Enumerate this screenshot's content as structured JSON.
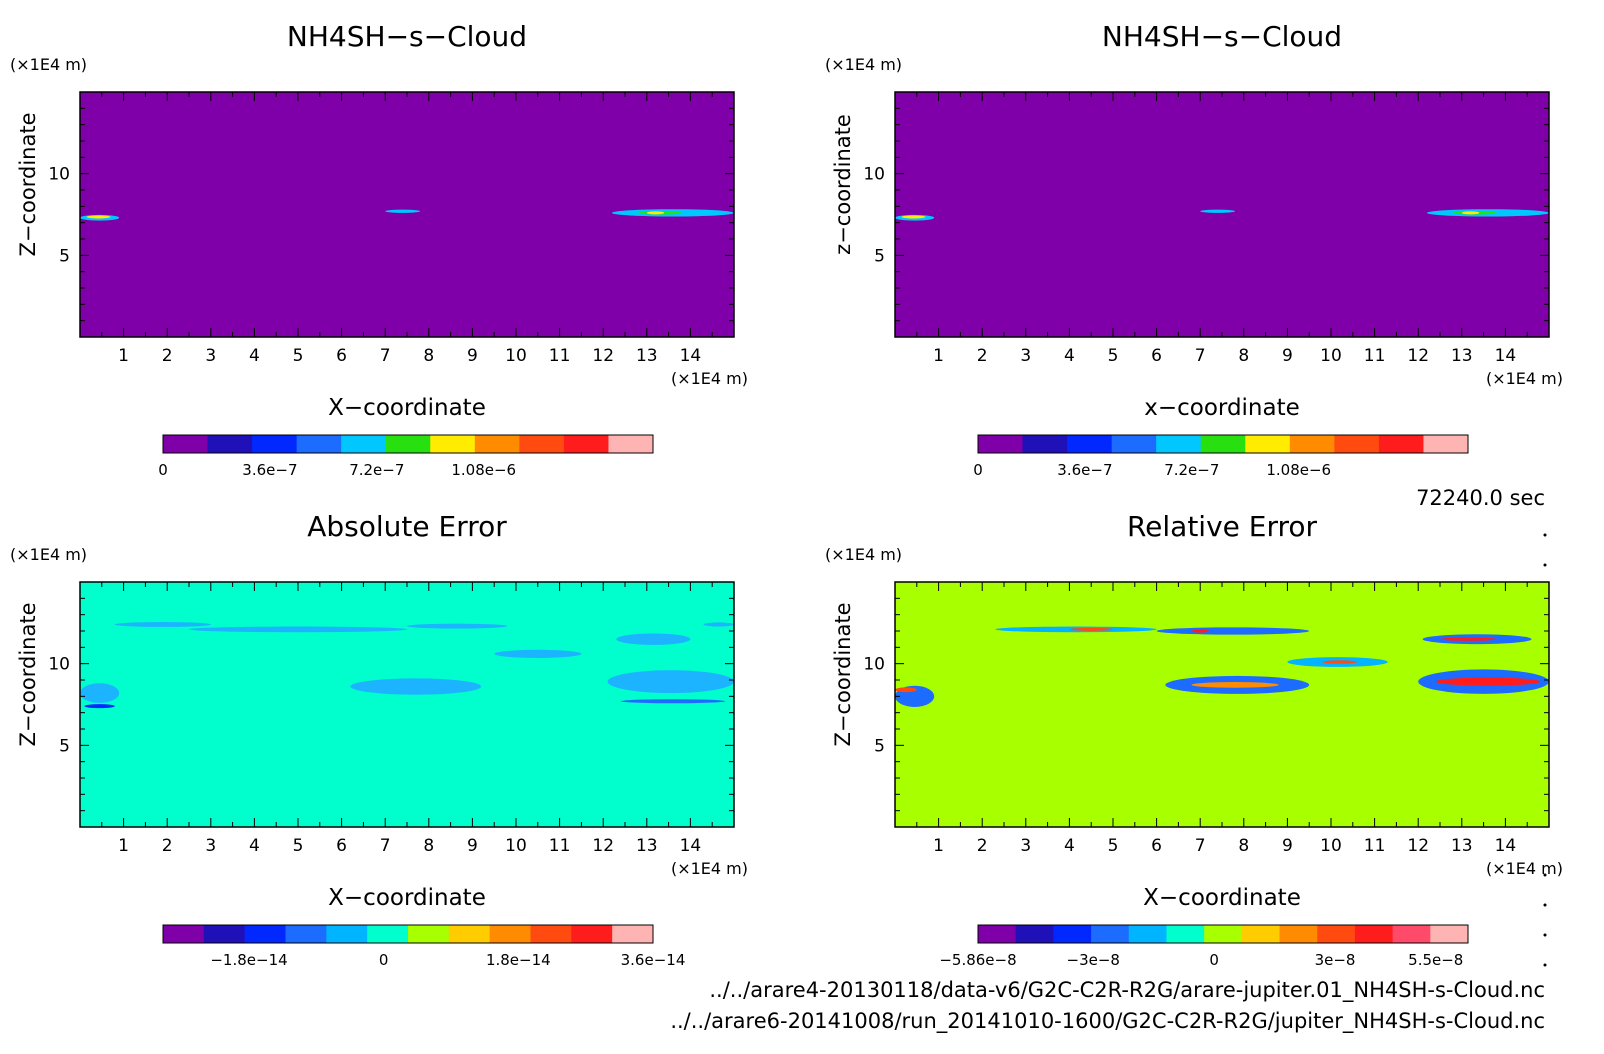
{
  "time_label": "72240.0 sec",
  "files": [
    "../../arare4-20130118/data-v6/G2C-C2R-R2G/arare-jupiter.01_NH4SH-s-Cloud.nc",
    "../../arare6-20141008/run_20141010-1600/G2C-C2R-R2G/jupiter_NH4SH-s-Cloud.nc"
  ],
  "colors": {
    "background_purple": "#7f00a8",
    "background_cyan": "#00ffcc",
    "background_lime": "#a8ff00",
    "axis": "#000000"
  },
  "chart_data": [
    {
      "id": "top-left",
      "type": "heatmap",
      "title": "NH4SH−s−Cloud",
      "xlabel": "X−coordinate",
      "ylabel": "Z−coordinate",
      "x_unit": "(×1E4 m)",
      "z_unit": "(×1E4 m)",
      "xlim": [
        0,
        15
      ],
      "zlim": [
        0,
        15
      ],
      "x_ticks": [
        "1",
        "2",
        "3",
        "4",
        "5",
        "6",
        "7",
        "8",
        "9",
        "10",
        "11",
        "12",
        "13",
        "14"
      ],
      "z_ticks": [
        "5",
        "10"
      ],
      "background": "#7f00a8",
      "colorbar": {
        "colors": [
          "#7f00a8",
          "#1f10b8",
          "#0028ff",
          "#1c6cff",
          "#00c8ff",
          "#28e010",
          "#ffec00",
          "#ff8c00",
          "#ff4a10",
          "#ff1c1c",
          "#ffb4b4"
        ],
        "labels": [
          {
            "text": "0",
            "value": 0
          },
          {
            "text": "3.6e−7",
            "value": 3.6e-07
          },
          {
            "text": "7.2e−7",
            "value": 7.2e-07
          },
          {
            "text": "1.08e−6",
            "value": 1.08e-06
          }
        ],
        "range": [
          0,
          1.65e-06
        ]
      },
      "features": [
        {
          "x": [
            0.0,
            0.9
          ],
          "z": 7.3,
          "thick": 0.35,
          "fill": "#00c8ff"
        },
        {
          "x": [
            0.15,
            0.7
          ],
          "z": 7.35,
          "thick": 0.15,
          "fill": "#ffec00"
        },
        {
          "x": [
            7.0,
            7.8
          ],
          "z": 7.7,
          "thick": 0.2,
          "fill": "#00c8ff"
        },
        {
          "x": [
            12.2,
            15.0
          ],
          "z": 7.6,
          "thick": 0.45,
          "fill": "#00c8ff"
        },
        {
          "x": [
            12.8,
            13.8
          ],
          "z": 7.6,
          "thick": 0.2,
          "fill": "#28e010"
        },
        {
          "x": [
            13.0,
            13.4
          ],
          "z": 7.6,
          "thick": 0.12,
          "fill": "#ffec00"
        }
      ]
    },
    {
      "id": "top-right",
      "type": "heatmap",
      "title": "NH4SH−s−Cloud",
      "xlabel": "x−coordinate",
      "ylabel": "z−coordinate",
      "x_unit": "(×1E4 m)",
      "z_unit": "(×1E4 m)",
      "xlim": [
        0,
        15
      ],
      "zlim": [
        0,
        15
      ],
      "x_ticks": [
        "1",
        "2",
        "3",
        "4",
        "5",
        "6",
        "7",
        "8",
        "9",
        "10",
        "11",
        "12",
        "13",
        "14"
      ],
      "z_ticks": [
        "5",
        "10"
      ],
      "background": "#7f00a8",
      "colorbar": {
        "colors": [
          "#7f00a8",
          "#1f10b8",
          "#0028ff",
          "#1c6cff",
          "#00c8ff",
          "#28e010",
          "#ffec00",
          "#ff8c00",
          "#ff4a10",
          "#ff1c1c",
          "#ffb4b4"
        ],
        "labels": [
          {
            "text": "0",
            "value": 0
          },
          {
            "text": "3.6e−7",
            "value": 3.6e-07
          },
          {
            "text": "7.2e−7",
            "value": 7.2e-07
          },
          {
            "text": "1.08e−6",
            "value": 1.08e-06
          }
        ],
        "range": [
          0,
          1.65e-06
        ]
      },
      "features": [
        {
          "x": [
            0.0,
            0.9
          ],
          "z": 7.3,
          "thick": 0.35,
          "fill": "#00c8ff"
        },
        {
          "x": [
            0.15,
            0.7
          ],
          "z": 7.35,
          "thick": 0.15,
          "fill": "#ffec00"
        },
        {
          "x": [
            7.0,
            7.8
          ],
          "z": 7.7,
          "thick": 0.2,
          "fill": "#00c8ff"
        },
        {
          "x": [
            12.2,
            15.0
          ],
          "z": 7.6,
          "thick": 0.45,
          "fill": "#00c8ff"
        },
        {
          "x": [
            12.8,
            13.8
          ],
          "z": 7.6,
          "thick": 0.2,
          "fill": "#28e010"
        },
        {
          "x": [
            13.0,
            13.4
          ],
          "z": 7.6,
          "thick": 0.12,
          "fill": "#ffec00"
        }
      ]
    },
    {
      "id": "bottom-left",
      "type": "heatmap",
      "title": "Absolute Error",
      "xlabel": "X−coordinate",
      "ylabel": "Z−coordinate",
      "x_unit": "(×1E4 m)",
      "z_unit": "(×1E4 m)",
      "xlim": [
        0,
        15
      ],
      "zlim": [
        0,
        15
      ],
      "x_ticks": [
        "1",
        "2",
        "3",
        "4",
        "5",
        "6",
        "7",
        "8",
        "9",
        "10",
        "11",
        "12",
        "13",
        "14"
      ],
      "z_ticks": [
        "5",
        "10"
      ],
      "background": "#00ffcc",
      "colorbar": {
        "colors": [
          "#7f00a8",
          "#1f10b8",
          "#0028ff",
          "#1c6cff",
          "#00b4ff",
          "#00ffcc",
          "#a8ff00",
          "#ffcc00",
          "#ff8c00",
          "#ff4a10",
          "#ff1c1c",
          "#ffb4b4"
        ],
        "labels": [
          {
            "text": "−1.8e−14",
            "value": -1.8e-14
          },
          {
            "text": "0",
            "value": 0
          },
          {
            "text": "1.8e−14",
            "value": 1.8e-14
          },
          {
            "text": "3.6e−14",
            "value": 3.6e-14
          }
        ],
        "range": [
          -2.95e-14,
          3.6e-14
        ]
      },
      "features": [
        {
          "x": [
            0.8,
            3.0
          ],
          "z": 12.4,
          "thick": 0.3,
          "fill": "#1cb4ff"
        },
        {
          "x": [
            2.5,
            7.5
          ],
          "z": 12.1,
          "thick": 0.35,
          "fill": "#1cb4ff"
        },
        {
          "x": [
            7.5,
            9.8
          ],
          "z": 12.3,
          "thick": 0.3,
          "fill": "#1cb4ff"
        },
        {
          "x": [
            12.3,
            14.0
          ],
          "z": 11.5,
          "thick": 0.7,
          "fill": "#1cb4ff"
        },
        {
          "x": [
            14.3,
            15.0
          ],
          "z": 12.4,
          "thick": 0.25,
          "fill": "#1cb4ff"
        },
        {
          "x": [
            9.5,
            11.5
          ],
          "z": 10.6,
          "thick": 0.5,
          "fill": "#1cb4ff"
        },
        {
          "x": [
            6.2,
            9.2
          ],
          "z": 8.6,
          "thick": 1.0,
          "fill": "#1cb4ff"
        },
        {
          "x": [
            12.1,
            15.0
          ],
          "z": 8.9,
          "thick": 1.4,
          "fill": "#1cb4ff"
        },
        {
          "x": [
            0.0,
            0.9
          ],
          "z": 8.2,
          "thick": 1.2,
          "fill": "#1cb4ff"
        },
        {
          "x": [
            0.1,
            0.8
          ],
          "z": 7.4,
          "thick": 0.25,
          "fill": "#0028ff"
        },
        {
          "x": [
            12.4,
            14.8
          ],
          "z": 7.7,
          "thick": 0.25,
          "fill": "#1c6cff"
        }
      ]
    },
    {
      "id": "bottom-right",
      "type": "heatmap",
      "title": "Relative Error",
      "xlabel": "X−coordinate",
      "ylabel": "Z−coordinate",
      "x_unit": "(×1E4 m)",
      "z_unit": "(×1E4 m)",
      "xlim": [
        0,
        15
      ],
      "zlim": [
        0,
        15
      ],
      "x_ticks": [
        "1",
        "2",
        "3",
        "4",
        "5",
        "6",
        "7",
        "8",
        "9",
        "10",
        "11",
        "12",
        "13",
        "14"
      ],
      "z_ticks": [
        "5",
        "10"
      ],
      "background": "#a8ff00",
      "colorbar": {
        "colors": [
          "#7f00a8",
          "#1f10b8",
          "#0028ff",
          "#1c6cff",
          "#00b4ff",
          "#00ffcc",
          "#a8ff00",
          "#ffcc00",
          "#ff8c00",
          "#ff4a10",
          "#ff1c1c",
          "#ff4a6a",
          "#ffb4b4"
        ],
        "labels": [
          {
            "text": "−5.86e−8",
            "value": -5.86e-08
          },
          {
            "text": "−3e−8",
            "value": -3e-08
          },
          {
            "text": "0",
            "value": 0
          },
          {
            "text": "3e−8",
            "value": 3e-08
          },
          {
            "text": "5.5e−8",
            "value": 5.5e-08
          }
        ],
        "range": [
          -5.86e-08,
          6.3e-08
        ]
      },
      "features": [
        {
          "x": [
            2.3,
            6.0
          ],
          "z": 12.1,
          "thick": 0.35,
          "fill": "#00b4ff"
        },
        {
          "x": [
            4.0,
            5.0
          ],
          "z": 12.1,
          "thick": 0.15,
          "fill": "#ff4a10"
        },
        {
          "x": [
            6.0,
            9.5
          ],
          "z": 12.0,
          "thick": 0.45,
          "fill": "#1c6cff"
        },
        {
          "x": [
            6.8,
            7.2
          ],
          "z": 12.0,
          "thick": 0.2,
          "fill": "#ff1c1c"
        },
        {
          "x": [
            12.1,
            14.6
          ],
          "z": 11.5,
          "thick": 0.6,
          "fill": "#1c6cff"
        },
        {
          "x": [
            12.5,
            13.8
          ],
          "z": 11.5,
          "thick": 0.2,
          "fill": "#ff1c1c"
        },
        {
          "x": [
            6.2,
            9.5
          ],
          "z": 8.7,
          "thick": 1.1,
          "fill": "#1c6cff"
        },
        {
          "x": [
            6.8,
            8.8
          ],
          "z": 8.7,
          "thick": 0.35,
          "fill": "#ff8c00"
        },
        {
          "x": [
            9.0,
            11.3
          ],
          "z": 10.1,
          "thick": 0.6,
          "fill": "#00b4ff"
        },
        {
          "x": [
            9.8,
            10.6
          ],
          "z": 10.1,
          "thick": 0.2,
          "fill": "#ff4a10"
        },
        {
          "x": [
            12.0,
            15.0
          ],
          "z": 8.9,
          "thick": 1.5,
          "fill": "#1c6cff"
        },
        {
          "x": [
            12.4,
            14.8
          ],
          "z": 8.9,
          "thick": 0.5,
          "fill": "#ff1c1c"
        },
        {
          "x": [
            0.0,
            0.9
          ],
          "z": 8.0,
          "thick": 1.3,
          "fill": "#1c6cff"
        },
        {
          "x": [
            0.0,
            0.5
          ],
          "z": 8.4,
          "thick": 0.3,
          "fill": "#ff4a10"
        }
      ]
    }
  ]
}
